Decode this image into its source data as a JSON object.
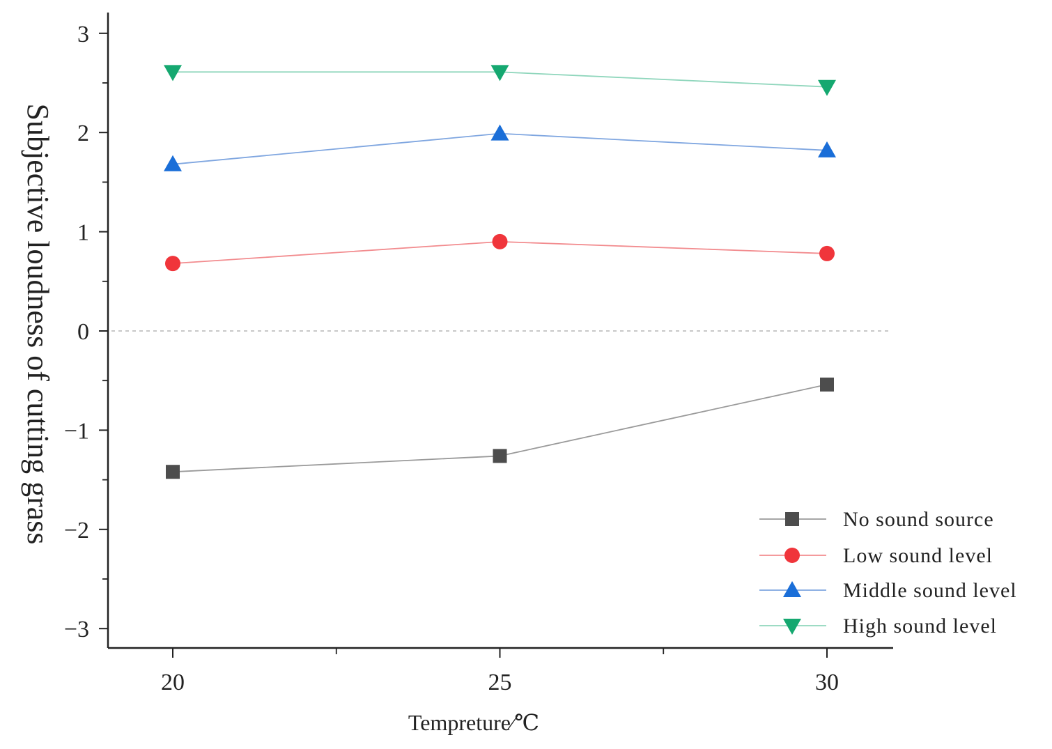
{
  "chart_data": {
    "type": "line",
    "title": "",
    "xlabel": "Tempreture∕℃",
    "ylabel": "Subjective loudness of cutting grass",
    "x": [
      20,
      25,
      30
    ],
    "xticks": [
      "20",
      "25",
      "30"
    ],
    "xlim": [
      19,
      31
    ],
    "ylim": [
      -3.2,
      3.2
    ],
    "yticks": [
      "3",
      "2",
      "1",
      "0",
      "−1",
      "−2",
      "−3"
    ],
    "ytick_values": [
      3,
      2,
      1,
      0,
      -1,
      -2,
      -3
    ],
    "reference_line": 0,
    "legend_position": "bottom-right",
    "series": [
      {
        "name": "No sound source",
        "values": [
          -1.42,
          -1.26,
          -0.54
        ],
        "color": "#4d4d4d",
        "line_color": "#9a9a9a",
        "marker": "square"
      },
      {
        "name": "Low sound level",
        "values": [
          0.68,
          0.9,
          0.78
        ],
        "color": "#f0353b",
        "line_color": "#f28b8e",
        "marker": "circle"
      },
      {
        "name": "Middle sound level",
        "values": [
          1.68,
          1.99,
          1.82
        ],
        "color": "#1a6ed8",
        "line_color": "#7fa6e0",
        "marker": "triangle-up"
      },
      {
        "name": "High sound level",
        "values": [
          2.61,
          2.61,
          2.46
        ],
        "color": "#15a870",
        "line_color": "#8fd6bc",
        "marker": "triangle-down"
      }
    ]
  }
}
